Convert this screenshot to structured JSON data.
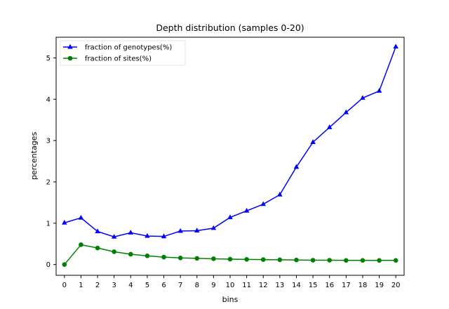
{
  "chart_data": {
    "type": "line",
    "title": "Depth distribution (samples 0-20)",
    "xlabel": "bins",
    "ylabel": "percentages",
    "categories": [
      "0",
      "1",
      "2",
      "3",
      "4",
      "5",
      "6",
      "7",
      "8",
      "9",
      "10",
      "11",
      "12",
      "13",
      "14",
      "15",
      "16",
      "17",
      "18",
      "19",
      "20"
    ],
    "x": [
      0,
      1,
      2,
      3,
      4,
      5,
      6,
      7,
      8,
      9,
      10,
      11,
      12,
      13,
      14,
      15,
      16,
      17,
      18,
      19,
      20
    ],
    "xlim": [
      -0.5,
      20.5
    ],
    "ylim": [
      -0.26,
      5.5
    ],
    "yticks": [
      0,
      1,
      2,
      3,
      4,
      5
    ],
    "grid": false,
    "legend_position": "top-left",
    "series": [
      {
        "name": "fraction of genotypes(%)",
        "color": "#0000ff",
        "marker": "triangle",
        "values": [
          1.01,
          1.13,
          0.8,
          0.67,
          0.77,
          0.69,
          0.68,
          0.81,
          0.82,
          0.88,
          1.14,
          1.3,
          1.46,
          1.69,
          2.36,
          2.96,
          3.32,
          3.68,
          4.03,
          4.2,
          5.27
        ]
      },
      {
        "name": "fraction of sites(%)",
        "color": "#008000",
        "marker": "circle",
        "values": [
          0.0,
          0.48,
          0.4,
          0.31,
          0.25,
          0.21,
          0.18,
          0.16,
          0.15,
          0.14,
          0.13,
          0.125,
          0.12,
          0.115,
          0.11,
          0.105,
          0.105,
          0.1,
          0.1,
          0.1,
          0.1
        ]
      }
    ]
  }
}
